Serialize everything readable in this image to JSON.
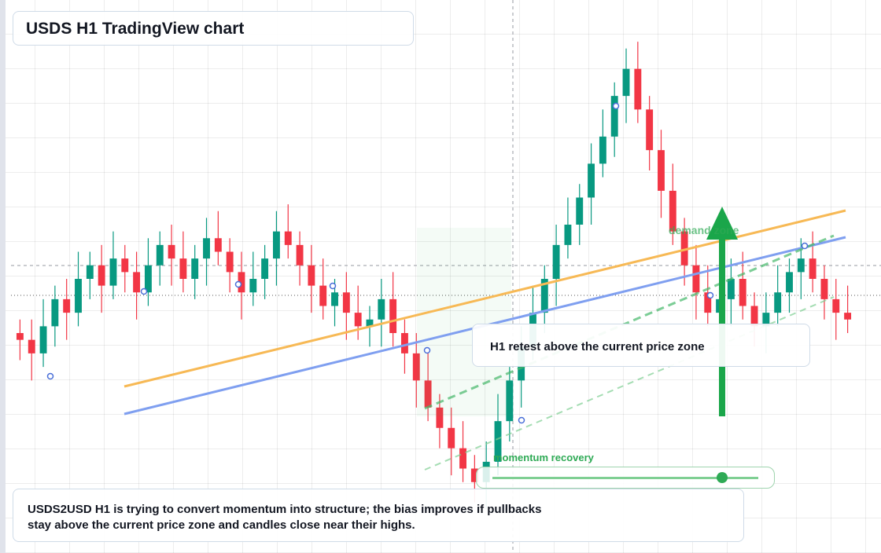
{
  "chart_data": {
    "type": "candlestick",
    "title": "USDS H1 TradingView chart",
    "annotations": {
      "retest": "H1 retest above the current price zone",
      "zone": "demand zone",
      "slider": "momentum recovery",
      "summary": "USDS2USD H1 is trying to convert momentum into structure; the bias improves if pullbacks stay above the current price zone and candles close near their highs."
    },
    "up_color": "#089981",
    "down_color": "#f23645",
    "ylim": [
      15,
      95
    ],
    "open": [
      47,
      46,
      44,
      48,
      52,
      50,
      55,
      57,
      54,
      58,
      56,
      53,
      57,
      60,
      58,
      55,
      58,
      61,
      59,
      56,
      53,
      55,
      58,
      62,
      60,
      57,
      54,
      51,
      53,
      50,
      48,
      49,
      52,
      47,
      44,
      40,
      36,
      33,
      30,
      27,
      25,
      28,
      34,
      40,
      45,
      50,
      55,
      60,
      63,
      67,
      72,
      76,
      82,
      86,
      80,
      74,
      68,
      62,
      57,
      53,
      50,
      52,
      55,
      51,
      48,
      50,
      53,
      56,
      58,
      55,
      52,
      50
    ],
    "high": [
      49,
      49,
      52,
      54,
      55,
      59,
      59,
      60,
      62,
      60,
      59,
      61,
      62,
      63,
      62,
      60,
      64,
      65,
      61,
      59,
      59,
      60,
      65,
      66,
      62,
      60,
      58,
      55,
      56,
      54,
      51,
      55,
      56,
      49,
      47,
      44,
      38,
      36,
      34,
      29,
      31,
      38,
      42,
      48,
      54,
      57,
      63,
      67,
      69,
      75,
      80,
      84,
      89,
      90,
      82,
      77,
      72,
      64,
      60,
      57,
      54,
      58,
      59,
      53,
      53,
      57,
      58,
      61,
      62,
      57,
      55,
      54
    ],
    "low": [
      43,
      40,
      42,
      45,
      46,
      48,
      52,
      50,
      52,
      53,
      49,
      51,
      54,
      54,
      53,
      52,
      54,
      57,
      53,
      49,
      51,
      52,
      54,
      58,
      54,
      50,
      49,
      48,
      46,
      46,
      45,
      45,
      45,
      41,
      36,
      34,
      30,
      26,
      25,
      22,
      21,
      26,
      31,
      36,
      43,
      47,
      51,
      58,
      60,
      63,
      70,
      73,
      78,
      78,
      71,
      64,
      60,
      54,
      49,
      48,
      47,
      48,
      49,
      45,
      44,
      48,
      50,
      52,
      53,
      49,
      46,
      47
    ],
    "close": [
      46,
      44,
      48,
      52,
      50,
      55,
      57,
      54,
      58,
      56,
      53,
      57,
      60,
      58,
      55,
      58,
      61,
      59,
      56,
      53,
      55,
      58,
      62,
      60,
      57,
      54,
      51,
      53,
      50,
      48,
      49,
      52,
      47,
      44,
      40,
      36,
      33,
      30,
      27,
      25,
      28,
      34,
      40,
      45,
      50,
      55,
      60,
      63,
      67,
      72,
      76,
      82,
      86,
      80,
      74,
      68,
      62,
      57,
      53,
      50,
      52,
      55,
      51,
      48,
      50,
      53,
      56,
      58,
      55,
      52,
      50,
      49
    ]
  }
}
